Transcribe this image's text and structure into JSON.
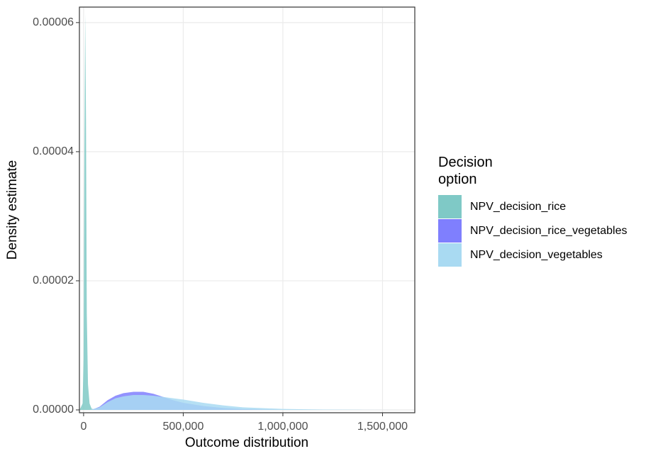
{
  "chart_data": {
    "type": "density",
    "xlabel": "Outcome distribution",
    "ylabel": "Density estimate",
    "legend_title": "Decision option",
    "legend_position": "right",
    "grid": true,
    "xlim": [
      -21000,
      1662000
    ],
    "ylim": [
      -4.4e-07,
      6.24e-05
    ],
    "xticks": [
      {
        "value": 0,
        "label": "0"
      },
      {
        "value": 500000,
        "label": "500,000"
      },
      {
        "value": 1000000,
        "label": "1,000,000"
      },
      {
        "value": 1500000,
        "label": "1,500,000"
      }
    ],
    "yticks": [
      {
        "value": 0,
        "label": "0.00000"
      },
      {
        "value": 2e-05,
        "label": "0.00002"
      },
      {
        "value": 4e-05,
        "label": "0.00004"
      },
      {
        "value": 6e-05,
        "label": "0.00006"
      }
    ],
    "series": [
      {
        "name": "NPV_decision_rice",
        "color": "#7fc9c6",
        "x": [
          -20000,
          -5000,
          0,
          4000,
          8000,
          12000,
          16000,
          22000,
          30000,
          40000,
          60000
        ],
        "values": [
          0,
          1e-06,
          8e-06,
          4e-05,
          6.15e-05,
          4.5e-05,
          1.5e-05,
          4e-06,
          1e-06,
          2e-07,
          0
        ]
      },
      {
        "name": "NPV_decision_rice_vegetables",
        "color": "#7f7ffe",
        "x": [
          40000,
          80000,
          120000,
          160000,
          200000,
          250000,
          300000,
          350000,
          400000,
          450000,
          500000,
          600000,
          700000,
          800000,
          900000,
          1000000
        ],
        "values": [
          0,
          5e-07,
          1.5e-06,
          2.2e-06,
          2.6e-06,
          2.8e-06,
          2.8e-06,
          2.5e-06,
          2e-06,
          1.5e-06,
          1.1e-06,
          6e-07,
          3e-07,
          1.2e-07,
          4e-08,
          0
        ]
      },
      {
        "name": "NPV_decision_vegetables",
        "color": "#a9daf2",
        "x": [
          30000,
          80000,
          120000,
          160000,
          200000,
          250000,
          300000,
          350000,
          400000,
          500000,
          600000,
          700000,
          800000,
          1000000,
          1200000,
          1400000,
          1600000
        ],
        "values": [
          0,
          4e-07,
          1.2e-06,
          1.8e-06,
          2.1e-06,
          2.3e-06,
          2.3e-06,
          2.2e-06,
          2e-06,
          1.6e-06,
          1.1e-06,
          7e-07,
          4e-07,
          1.5e-07,
          6e-08,
          2e-08,
          0
        ]
      }
    ]
  }
}
